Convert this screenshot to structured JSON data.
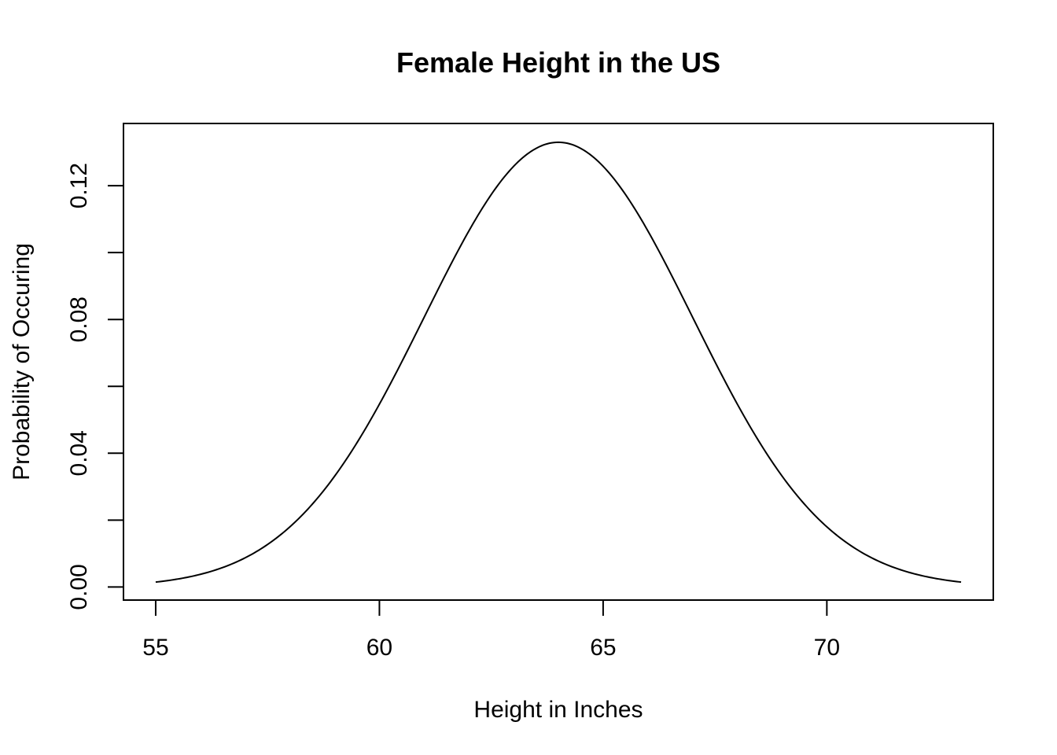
{
  "chart_data": {
    "type": "line",
    "title": "Female Height in the US",
    "xlabel": "Height in Inches",
    "ylabel": "Probability of Occuring",
    "xlim": [
      54.28,
      73.72
    ],
    "ylim": [
      -0.0039,
      0.1386
    ],
    "x_ticks": [
      55,
      60,
      65,
      70
    ],
    "x_tick_labels": [
      "55",
      "60",
      "65",
      "70"
    ],
    "y_ticks": [
      0.0,
      0.02,
      0.04,
      0.06,
      0.08,
      0.1,
      0.12
    ],
    "y_tick_labels": [
      "0.00",
      "",
      "0.04",
      "",
      "0.08",
      "",
      "0.12"
    ],
    "grid": false,
    "legend": "none",
    "series": [
      {
        "distribution": "normal",
        "mean": 64,
        "sd": 3,
        "x_range": [
          55,
          73
        ],
        "x": [
          55,
          55.5,
          56,
          56.5,
          57,
          57.5,
          58,
          58.5,
          59,
          59.5,
          60,
          60.5,
          61,
          61.5,
          62,
          62.5,
          63,
          63.5,
          64,
          64.5,
          65,
          65.5,
          66,
          66.5,
          67,
          67.5,
          68,
          68.5,
          69,
          69.5,
          70,
          70.5,
          71,
          71.5,
          72,
          72.5,
          73
        ],
        "y": [
          0.0015,
          0.0025,
          0.0038,
          0.0058,
          0.0087,
          0.0127,
          0.018,
          0.0248,
          0.0332,
          0.0431,
          0.0547,
          0.0674,
          0.0807,
          0.094,
          0.1065,
          0.1172,
          0.1258,
          0.1311,
          0.133,
          0.1311,
          0.1258,
          0.1172,
          0.1065,
          0.094,
          0.0807,
          0.0674,
          0.0547,
          0.0431,
          0.0332,
          0.0248,
          0.018,
          0.0127,
          0.0087,
          0.0058,
          0.0038,
          0.0025,
          0.0015
        ]
      }
    ]
  }
}
